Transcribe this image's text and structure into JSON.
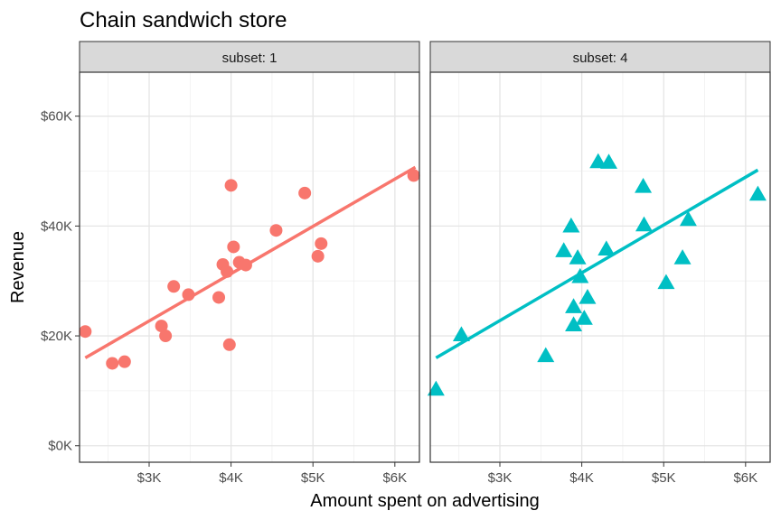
{
  "chart_data": {
    "type": "scatter",
    "title": "Chain sandwich store",
    "xlabel": "Amount spent on advertising",
    "ylabel": "Revenue",
    "xlim": [
      2150,
      6300
    ],
    "ylim": [
      -3000,
      68000
    ],
    "x_ticks": [
      3000,
      4000,
      5000,
      6000
    ],
    "x_tick_labels": [
      "$3K",
      "$4K",
      "$5K",
      "$6K"
    ],
    "y_ticks": [
      0,
      20000,
      40000,
      60000
    ],
    "y_tick_labels": [
      "$0K",
      "$20K",
      "$40K",
      "$60K"
    ],
    "grid": true,
    "legend": "none",
    "panels": [
      {
        "strip_label": "subset: 1",
        "color": "#F8766D",
        "marker": "circle",
        "fit": {
          "x": [
            2220,
            6250
          ],
          "y": [
            16000,
            50700
          ]
        },
        "points": [
          {
            "x": 2220,
            "y": 20800
          },
          {
            "x": 2550,
            "y": 15000
          },
          {
            "x": 2700,
            "y": 15300
          },
          {
            "x": 3150,
            "y": 21800
          },
          {
            "x": 3200,
            "y": 20000
          },
          {
            "x": 3300,
            "y": 29000
          },
          {
            "x": 3480,
            "y": 27500
          },
          {
            "x": 3850,
            "y": 27000
          },
          {
            "x": 3900,
            "y": 33000
          },
          {
            "x": 3950,
            "y": 31700
          },
          {
            "x": 3980,
            "y": 18400
          },
          {
            "x": 4000,
            "y": 47400
          },
          {
            "x": 4030,
            "y": 36200
          },
          {
            "x": 4100,
            "y": 33400
          },
          {
            "x": 4180,
            "y": 32900
          },
          {
            "x": 4550,
            "y": 39200
          },
          {
            "x": 4900,
            "y": 46000
          },
          {
            "x": 5060,
            "y": 34500
          },
          {
            "x": 5100,
            "y": 36800
          },
          {
            "x": 6230,
            "y": 49200
          }
        ]
      },
      {
        "strip_label": "subset: 4",
        "color": "#00BFC4",
        "marker": "triangle",
        "fit": {
          "x": [
            2220,
            6150
          ],
          "y": [
            16000,
            50200
          ]
        },
        "points": [
          {
            "x": 2220,
            "y": 10300
          },
          {
            "x": 2530,
            "y": 20200
          },
          {
            "x": 3560,
            "y": 16400
          },
          {
            "x": 3780,
            "y": 35500
          },
          {
            "x": 3870,
            "y": 40000
          },
          {
            "x": 3900,
            "y": 22000
          },
          {
            "x": 3900,
            "y": 25300
          },
          {
            "x": 3950,
            "y": 34200
          },
          {
            "x": 3980,
            "y": 30800
          },
          {
            "x": 4030,
            "y": 23200
          },
          {
            "x": 4070,
            "y": 27000
          },
          {
            "x": 4200,
            "y": 51700
          },
          {
            "x": 4300,
            "y": 35800
          },
          {
            "x": 4330,
            "y": 51600
          },
          {
            "x": 4750,
            "y": 47200
          },
          {
            "x": 4760,
            "y": 40200
          },
          {
            "x": 5030,
            "y": 29700
          },
          {
            "x": 5230,
            "y": 34200
          },
          {
            "x": 5300,
            "y": 41200
          },
          {
            "x": 6150,
            "y": 45800
          }
        ]
      }
    ]
  }
}
